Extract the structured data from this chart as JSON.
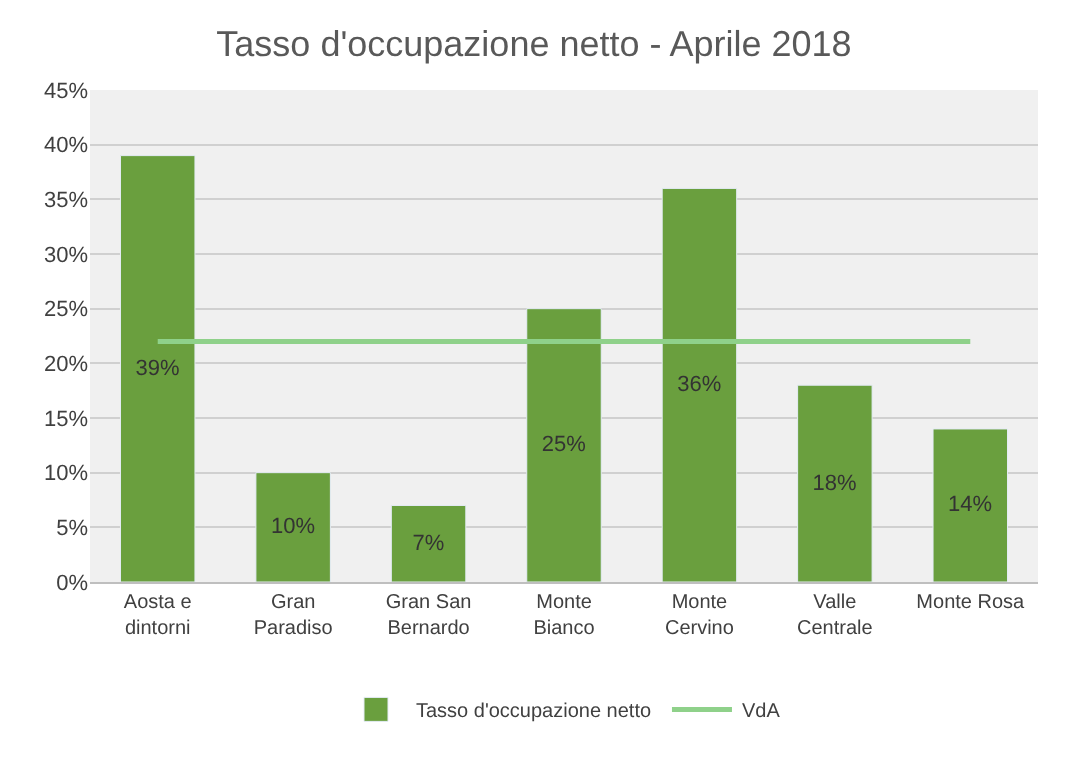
{
  "chart_data": {
    "type": "bar",
    "title": "Tasso d'occupazione netto - Aprile 2018",
    "categories": [
      "Aosta e dintorni",
      "Gran Paradiso",
      "Gran San Bernardo",
      "Monte Bianco",
      "Monte Cervino",
      "Valle Centrale",
      "Monte Rosa"
    ],
    "series": [
      {
        "name": "Tasso d'occupazione netto",
        "color": "#6a9f3e",
        "values": [
          39,
          10,
          7,
          25,
          36,
          18,
          14
        ],
        "value_labels": [
          "39%",
          "10%",
          "7%",
          "25%",
          "36%",
          "18%",
          "14%"
        ]
      },
      {
        "name": "VdA",
        "type": "line",
        "color": "#8fd18a",
        "values": [
          22,
          22,
          22,
          22,
          22,
          22,
          22
        ]
      }
    ],
    "ylim": [
      0,
      45
    ],
    "yticks": [
      {
        "value": 0,
        "label": "0%"
      },
      {
        "value": 5,
        "label": "5%"
      },
      {
        "value": 10,
        "label": "10%"
      },
      {
        "value": 15,
        "label": "15%"
      },
      {
        "value": 20,
        "label": "20%"
      },
      {
        "value": 25,
        "label": "25%"
      },
      {
        "value": 30,
        "label": "30%"
      },
      {
        "value": 35,
        "label": "35%"
      },
      {
        "value": 40,
        "label": "40%"
      },
      {
        "value": 45,
        "label": "45%"
      }
    ],
    "grid": "y",
    "legend": "bottom"
  }
}
